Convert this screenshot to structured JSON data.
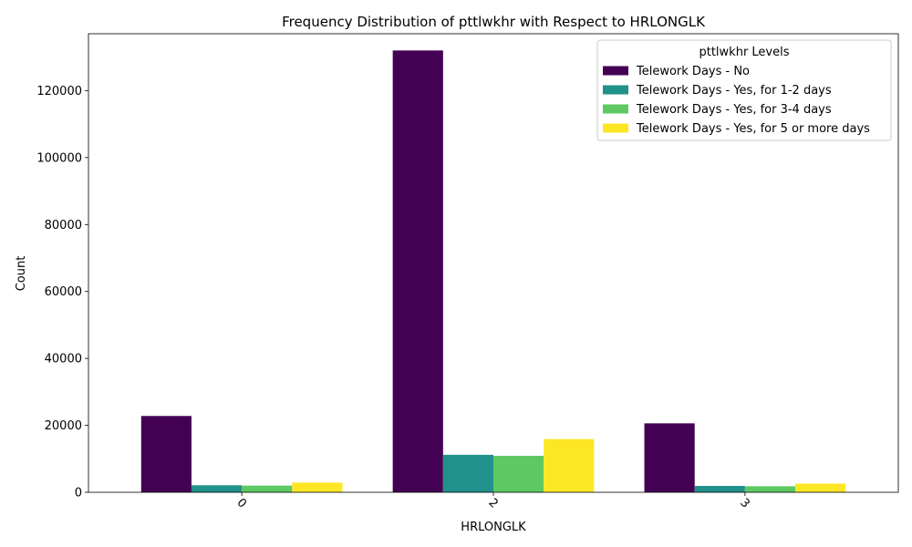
{
  "chart_data": {
    "type": "bar",
    "title": "Frequency Distribution of pttlwkhr with Respect to HRLONGLK",
    "xlabel": "HRLONGLK",
    "ylabel": "Count",
    "categories": [
      "0",
      "2",
      "3"
    ],
    "ylim": [
      0,
      137000
    ],
    "yticks": [
      0,
      20000,
      40000,
      60000,
      80000,
      100000,
      120000
    ],
    "grid": false,
    "legend": {
      "title": "pttlwkhr Levels",
      "placement": "top-right"
    },
    "series": [
      {
        "name": "Telework Days - No",
        "color": "#440154",
        "values": [
          22800,
          132000,
          20600
        ]
      },
      {
        "name": "Telework Days - Yes, for 1-2 days",
        "color": "#21918c",
        "values": [
          2100,
          11200,
          1900
        ]
      },
      {
        "name": "Telework Days - Yes, for 3-4 days",
        "color": "#5ec962",
        "values": [
          2000,
          10900,
          1800
        ]
      },
      {
        "name": "Telework Days - Yes, for 5 or more days",
        "color": "#fde725",
        "values": [
          2900,
          15900,
          2600
        ]
      }
    ]
  }
}
